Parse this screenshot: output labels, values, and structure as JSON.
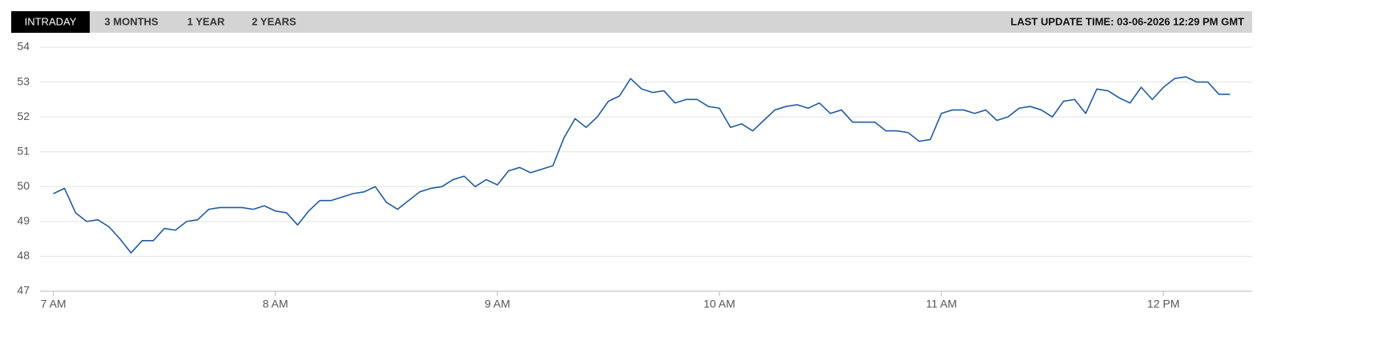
{
  "tabs": [
    "INTRADAY",
    "3 MONTHS",
    "1 YEAR",
    "2 YEARS"
  ],
  "active_tab": 0,
  "last_update": "LAST UPDATE TIME: 03-06-2026 12:29 PM GMT",
  "chart_data": {
    "type": "line",
    "color": "#1f5ba6",
    "grid": true,
    "xlim": [
      6.94,
      12.4
    ],
    "ylim": [
      47,
      54
    ],
    "yticks": [
      47,
      48,
      49,
      50,
      51,
      52,
      53,
      54
    ],
    "xticks": [
      {
        "value": 7,
        "label": "7 AM"
      },
      {
        "value": 8,
        "label": "8 AM"
      },
      {
        "value": 9,
        "label": "9 AM"
      },
      {
        "value": 10,
        "label": "10 AM"
      },
      {
        "value": 11,
        "label": "11 AM"
      },
      {
        "value": 12,
        "label": "12 PM"
      }
    ],
    "x": [
      7.0,
      7.05,
      7.1,
      7.15,
      7.2,
      7.25,
      7.3,
      7.35,
      7.4,
      7.45,
      7.5,
      7.55,
      7.6,
      7.65,
      7.7,
      7.75,
      7.8,
      7.85,
      7.9,
      7.95,
      8.0,
      8.05,
      8.1,
      8.15,
      8.2,
      8.25,
      8.3,
      8.35,
      8.4,
      8.45,
      8.5,
      8.55,
      8.6,
      8.65,
      8.7,
      8.75,
      8.8,
      8.85,
      8.9,
      8.95,
      9.0,
      9.05,
      9.1,
      9.15,
      9.2,
      9.25,
      9.3,
      9.35,
      9.4,
      9.45,
      9.5,
      9.55,
      9.6,
      9.65,
      9.7,
      9.75,
      9.8,
      9.85,
      9.9,
      9.95,
      10.0,
      10.05,
      10.1,
      10.15,
      10.2,
      10.25,
      10.3,
      10.35,
      10.4,
      10.45,
      10.5,
      10.55,
      10.6,
      10.65,
      10.7,
      10.75,
      10.8,
      10.85,
      10.9,
      10.95,
      11.0,
      11.05,
      11.1,
      11.15,
      11.2,
      11.25,
      11.3,
      11.35,
      11.4,
      11.45,
      11.5,
      11.55,
      11.6,
      11.65,
      11.7,
      11.75,
      11.8,
      11.85,
      11.9,
      11.95,
      12.0,
      12.05,
      12.1,
      12.15,
      12.2,
      12.25,
      12.3
    ],
    "values": [
      49.8,
      49.95,
      49.25,
      49.0,
      49.05,
      48.85,
      48.5,
      48.1,
      48.45,
      48.45,
      48.8,
      48.75,
      49.0,
      49.05,
      49.35,
      49.4,
      49.4,
      49.4,
      49.35,
      49.45,
      49.3,
      49.25,
      48.9,
      49.3,
      49.6,
      49.6,
      49.7,
      49.8,
      49.85,
      50.0,
      49.55,
      49.35,
      49.6,
      49.85,
      49.95,
      50.0,
      50.2,
      50.3,
      50.0,
      50.2,
      50.05,
      50.45,
      50.55,
      50.4,
      50.5,
      50.6,
      51.4,
      51.95,
      51.7,
      52.0,
      52.45,
      52.6,
      53.1,
      52.8,
      52.7,
      52.75,
      52.4,
      52.5,
      52.5,
      52.3,
      52.25,
      51.7,
      51.8,
      51.6,
      51.9,
      52.2,
      52.3,
      52.35,
      52.25,
      52.4,
      52.1,
      52.2,
      51.85,
      51.85,
      51.85,
      51.6,
      51.6,
      51.55,
      51.3,
      51.35,
      52.1,
      52.2,
      52.2,
      52.1,
      52.2,
      51.9,
      52.0,
      52.25,
      52.3,
      52.2,
      52.0,
      52.45,
      52.5,
      52.1,
      52.8,
      52.75,
      52.55,
      52.4,
      52.85,
      52.5,
      52.85,
      53.1,
      53.15,
      53.0,
      53.0,
      52.65,
      52.65
    ]
  }
}
